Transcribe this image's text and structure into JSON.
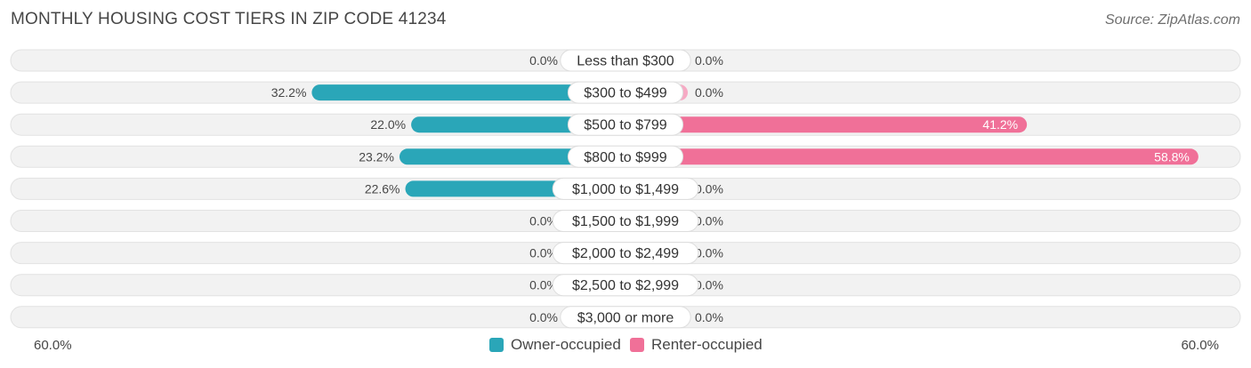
{
  "header": {
    "title": "MONTHLY HOUSING COST TIERS IN ZIP CODE 41234",
    "source": "Source: ZipAtlas.com"
  },
  "colors": {
    "owner": "#2aa6b8",
    "owner_light": "#8fd0d8",
    "renter": "#f07098",
    "renter_light": "#f6aac4",
    "track": "#eeeeee"
  },
  "axis": {
    "left_label": "60.0%",
    "right_label": "60.0%"
  },
  "legend": {
    "owner_label": "Owner-occupied",
    "renter_label": "Renter-occupied"
  },
  "chart_data": {
    "type": "bar",
    "orientation": "horizontal-diverging",
    "title": "MONTHLY HOUSING COST TIERS IN ZIP CODE 41234",
    "xlim": [
      -60,
      60
    ],
    "categories": [
      "Less than $300",
      "$300 to $499",
      "$500 to $799",
      "$800 to $999",
      "$1,000 to $1,499",
      "$1,500 to $1,999",
      "$2,000 to $2,499",
      "$2,500 to $2,999",
      "$3,000 or more"
    ],
    "series": [
      {
        "name": "Owner-occupied",
        "values": [
          0.0,
          32.2,
          22.0,
          23.2,
          22.6,
          0.0,
          0.0,
          0.0,
          0.0
        ],
        "labels": [
          "0.0%",
          "32.2%",
          "22.0%",
          "23.2%",
          "22.6%",
          "0.0%",
          "0.0%",
          "0.0%",
          "0.0%"
        ]
      },
      {
        "name": "Renter-occupied",
        "values": [
          0.0,
          0.0,
          41.2,
          58.8,
          0.0,
          0.0,
          0.0,
          0.0,
          0.0
        ],
        "labels": [
          "0.0%",
          "0.0%",
          "41.2%",
          "58.8%",
          "0.0%",
          "0.0%",
          "0.0%",
          "0.0%",
          "0.0%"
        ]
      }
    ],
    "legend_position": "bottom-center"
  }
}
